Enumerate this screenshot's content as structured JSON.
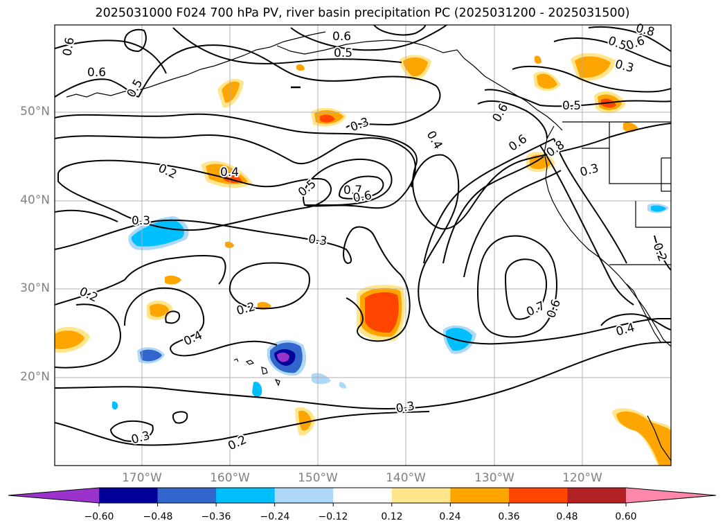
{
  "title": "2025031000 F024 700 hPa PV, river basin precipitation PC (2025031200 - 2025031500)",
  "latitude_labels": [
    "50°N",
    "40°N",
    "30°N",
    "20°N"
  ],
  "longitude_labels": [
    "170°W",
    "160°W",
    "150°W",
    "140°W",
    "130°W",
    "120°W"
  ],
  "contour_labels": [
    "0.6",
    "0.5",
    "0.6",
    "0.5",
    "0.3",
    "0.4",
    "0.6",
    "0.6",
    "0.8",
    "0.5",
    "0.3",
    "0.2",
    "0.4",
    "0.5",
    "0.7",
    "0.6",
    "0.3",
    "0.3",
    "0.2",
    "0.2",
    "0.4",
    "0.7",
    "0.6",
    "0.4",
    "0.2",
    "0.3",
    "0.3",
    "0.2",
    "0.6",
    "0.5",
    "0.6",
    "0.8",
    "0.3"
  ],
  "colorbar": {
    "ticks": [
      "−0.60",
      "−0.48",
      "−0.36",
      "−0.24",
      "−0.12",
      "0.12",
      "0.24",
      "0.36",
      "0.48",
      "0.60"
    ],
    "colors": [
      "#9933cc",
      "#000099",
      "#3366cc",
      "#00bfff",
      "#add8f7",
      "#ffffff",
      "#ffe68c",
      "#ffa500",
      "#ff4500",
      "#b22222",
      "#ff88aa"
    ]
  },
  "palette": {
    "contour": "#000000",
    "grid": "#b0b0b0",
    "axis_tick_text": "#808080"
  }
}
